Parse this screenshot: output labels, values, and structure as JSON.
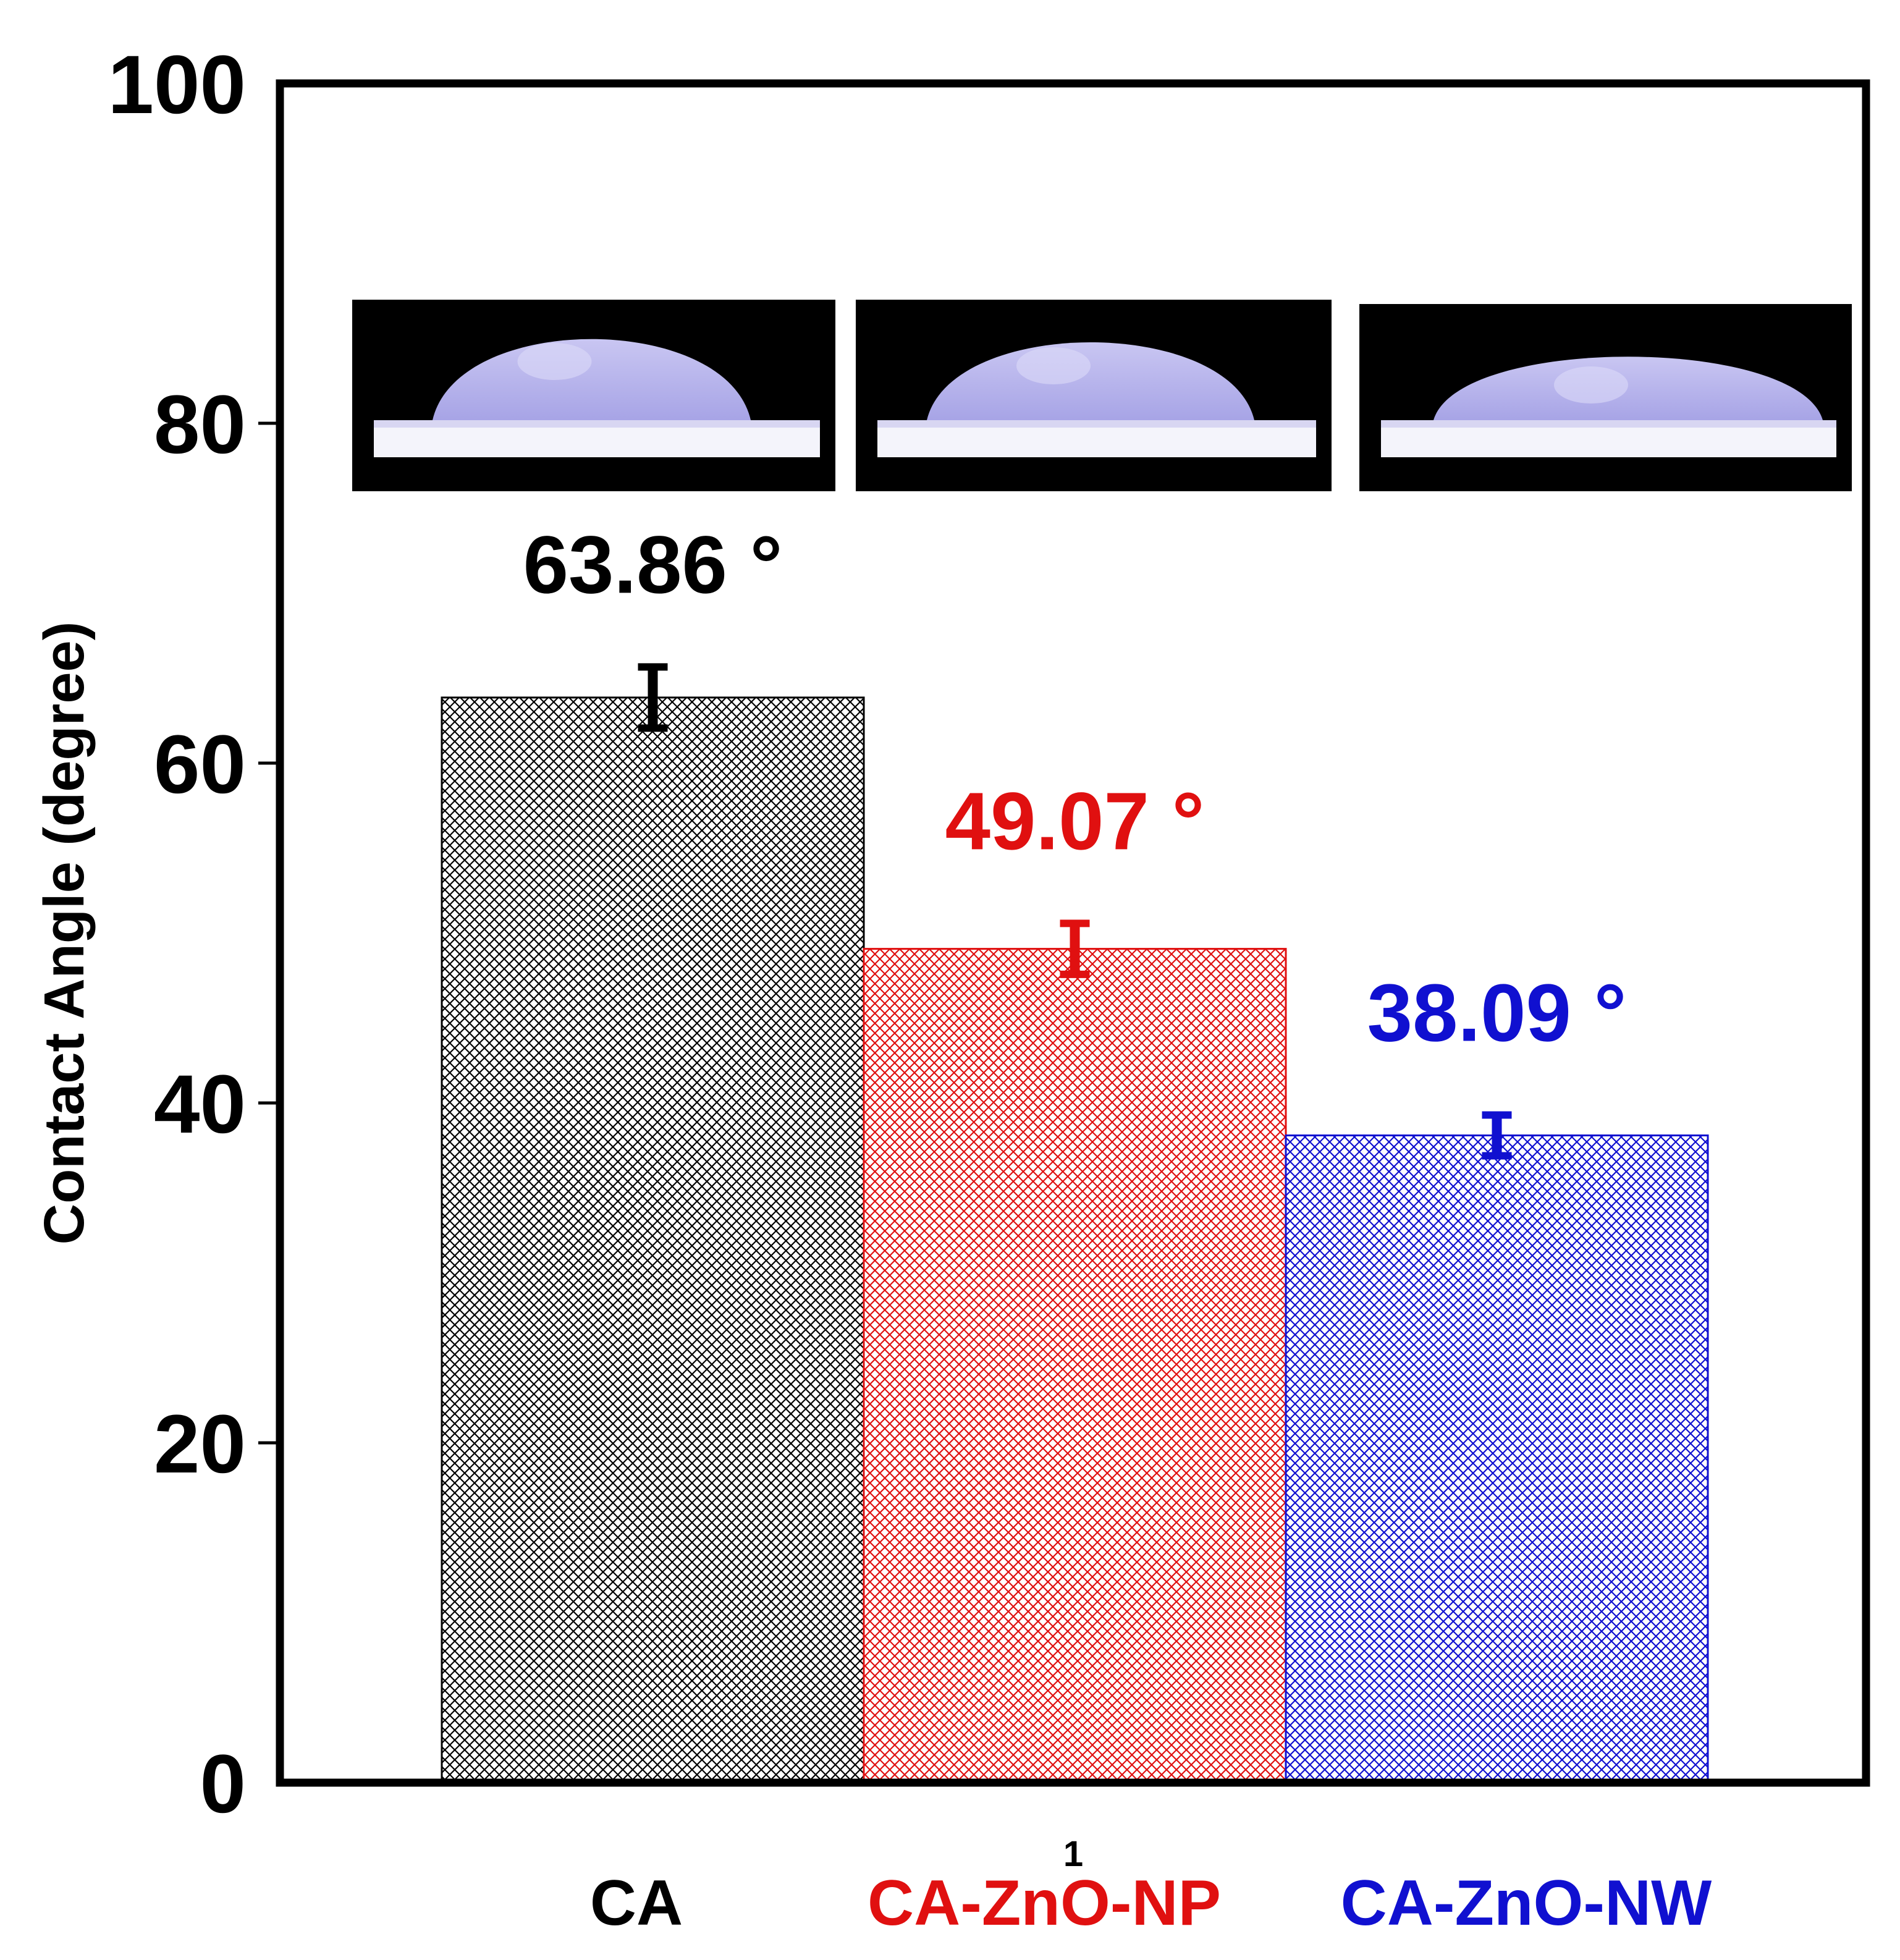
{
  "chart_data": {
    "type": "bar",
    "title": "",
    "xlabel": "",
    "ylabel": "Contact Angle (degree)",
    "ylim": [
      0,
      100
    ],
    "yticks": [
      0,
      20,
      40,
      60,
      80,
      100
    ],
    "ytick_labels": [
      "0",
      "20",
      "40",
      "60",
      "80",
      "100"
    ],
    "xtick_label": "1",
    "grid": false,
    "categories": [
      "CA",
      "CA-ZnO-NP",
      "CA-ZnO-NW"
    ],
    "values": [
      63.86,
      49.07,
      38.09
    ],
    "errors": [
      1.8,
      1.5,
      1.2
    ],
    "value_labels": [
      "63.86 °",
      "49.07 °",
      "38.09 °"
    ],
    "colors": [
      "#000000",
      "#e01010",
      "#1010d0"
    ],
    "bar_fill": "crosshatch",
    "insets": [
      "water-droplet-photo-CA",
      "water-droplet-photo-CA-ZnO-NP",
      "water-droplet-photo-CA-ZnO-NW"
    ]
  }
}
